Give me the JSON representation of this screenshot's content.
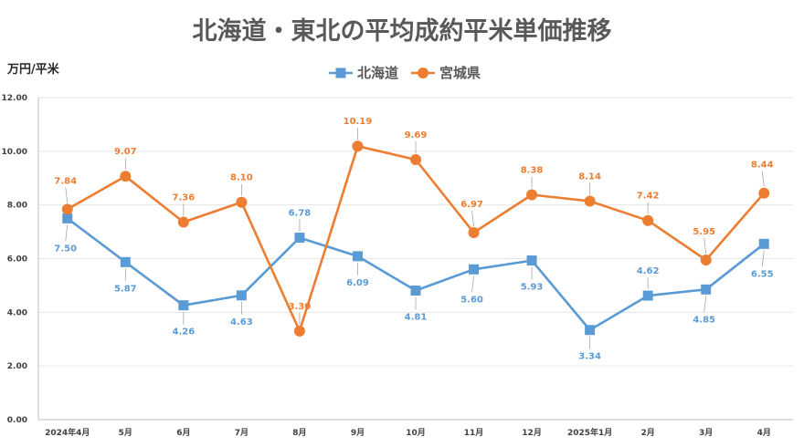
{
  "chart_data": {
    "type": "line",
    "title": "北海道・東北の平均成約平米単価推移",
    "ylabel": "万円/平米",
    "xlabel": "",
    "ylim": [
      0,
      12
    ],
    "yticks": [
      "0.00",
      "2.00",
      "4.00",
      "6.00",
      "8.00",
      "10.00",
      "12.00"
    ],
    "grid": true,
    "legend_position": "top",
    "categories": [
      "2024年4月",
      "5月",
      "6月",
      "7月",
      "8月",
      "9月",
      "10月",
      "11月",
      "12月",
      "2025年1月",
      "2月",
      "3月",
      "4月"
    ],
    "series": [
      {
        "name": "北海道",
        "color": "#5B9BD5",
        "marker": "square",
        "values": [
          7.5,
          5.87,
          4.26,
          4.63,
          6.78,
          6.09,
          4.81,
          5.6,
          5.93,
          3.34,
          4.62,
          4.85,
          6.55
        ],
        "labels": [
          "7.50",
          "5.87",
          "4.26",
          "4.63",
          "6.78",
          "6.09",
          "4.81",
          "5.60",
          "5.93",
          "3.34",
          "4.62",
          "4.85",
          "6.55"
        ]
      },
      {
        "name": "宮城県",
        "color": "#ED7D31",
        "marker": "circle",
        "values": [
          7.84,
          9.07,
          7.36,
          8.1,
          3.3,
          10.19,
          9.69,
          6.97,
          8.38,
          8.14,
          7.42,
          5.95,
          8.44
        ],
        "labels": [
          "7.84",
          "9.07",
          "7.36",
          "8.10",
          "3.30",
          "10.19",
          "9.69",
          "6.97",
          "8.38",
          "8.14",
          "7.42",
          "5.95",
          "8.44"
        ]
      }
    ]
  }
}
